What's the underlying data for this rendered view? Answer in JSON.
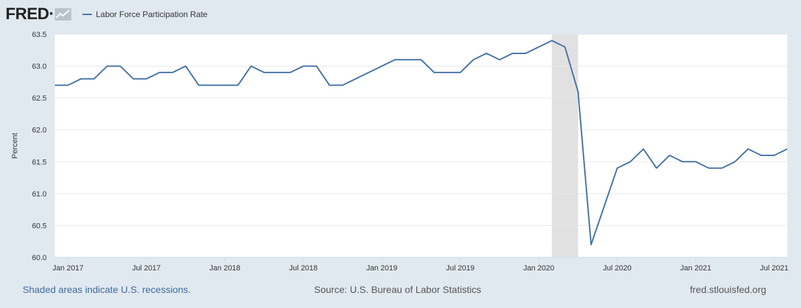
{
  "header": {
    "logo_text": "FRED",
    "logo_mark": "·",
    "legend_label": "Labor Force Participation Rate"
  },
  "footer": {
    "recession_note": "Shaded areas indicate U.S. recessions.",
    "source": "Source: U.S. Bureau of Labor Statistics",
    "site": "fred.stlouisfed.org"
  },
  "colors": {
    "line": "#4572a7",
    "recession": "#e1e1e1",
    "grid": "#e8e8e8",
    "background": "#e1e9f0",
    "plot_bg": "#ffffff"
  },
  "chart_data": {
    "type": "line",
    "title": "Labor Force Participation Rate",
    "ylabel": "Percent",
    "xlabel": "",
    "ylim": [
      60.0,
      63.5
    ],
    "yticks": [
      "60.0",
      "60.5",
      "61.0",
      "61.5",
      "62.0",
      "62.5",
      "63.0",
      "63.5"
    ],
    "xlim_months": [
      -1,
      55
    ],
    "xticks": [
      {
        "label": "Jan 2017",
        "month_index": 0
      },
      {
        "label": "Jul 2017",
        "month_index": 6
      },
      {
        "label": "Jan 2018",
        "month_index": 12
      },
      {
        "label": "Jul 2018",
        "month_index": 18
      },
      {
        "label": "Jan 2019",
        "month_index": 24
      },
      {
        "label": "Jul 2019",
        "month_index": 30
      },
      {
        "label": "Jan 2020",
        "month_index": 36
      },
      {
        "label": "Jul 2020",
        "month_index": 42
      },
      {
        "label": "Jan 2021",
        "month_index": 48
      },
      {
        "label": "Jul 2021",
        "month_index": 54
      }
    ],
    "recessions": [
      {
        "start_month_index": 37,
        "end_month_index": 39,
        "label": "Feb 2020 – Apr 2020"
      }
    ],
    "series": [
      {
        "name": "Labor Force Participation Rate",
        "start": "2016-12",
        "dates": [
          "2016-12",
          "2017-01",
          "2017-02",
          "2017-03",
          "2017-04",
          "2017-05",
          "2017-06",
          "2017-07",
          "2017-08",
          "2017-09",
          "2017-10",
          "2017-11",
          "2017-12",
          "2018-01",
          "2018-02",
          "2018-03",
          "2018-04",
          "2018-05",
          "2018-06",
          "2018-07",
          "2018-08",
          "2018-09",
          "2018-10",
          "2018-11",
          "2018-12",
          "2019-01",
          "2019-02",
          "2019-03",
          "2019-04",
          "2019-05",
          "2019-06",
          "2019-07",
          "2019-08",
          "2019-09",
          "2019-10",
          "2019-11",
          "2019-12",
          "2020-01",
          "2020-02",
          "2020-03",
          "2020-04",
          "2020-05",
          "2020-06",
          "2020-07",
          "2020-08",
          "2020-09",
          "2020-10",
          "2020-11",
          "2020-12",
          "2021-01",
          "2021-02",
          "2021-03",
          "2021-04",
          "2021-05",
          "2021-06",
          "2021-07",
          "2021-08"
        ],
        "values": [
          62.7,
          62.7,
          62.8,
          62.8,
          63.0,
          63.0,
          62.8,
          62.8,
          62.9,
          62.9,
          63.0,
          62.7,
          62.7,
          62.7,
          62.7,
          63.0,
          62.9,
          62.9,
          62.9,
          63.0,
          63.0,
          62.7,
          62.7,
          62.8,
          62.9,
          63.0,
          63.1,
          63.1,
          63.1,
          62.9,
          62.9,
          62.9,
          63.1,
          63.2,
          63.1,
          63.2,
          63.2,
          63.3,
          63.4,
          63.3,
          62.6,
          60.2,
          60.8,
          61.4,
          61.5,
          61.7,
          61.4,
          61.6,
          61.5,
          61.5,
          61.4,
          61.4,
          61.5,
          61.7,
          61.6,
          61.6,
          61.7
        ]
      }
    ]
  }
}
